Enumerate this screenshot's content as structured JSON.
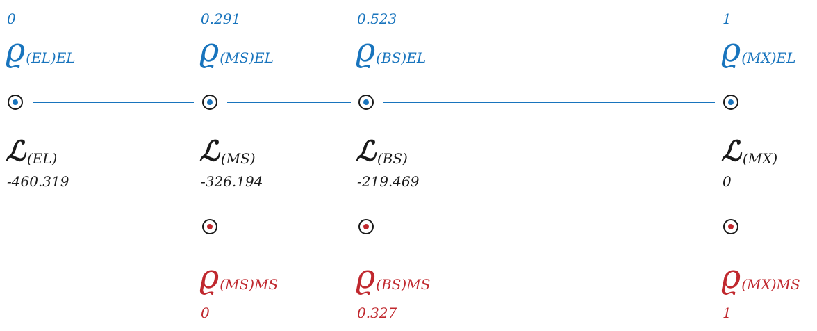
{
  "colors": {
    "el": "#1874bd",
    "ms": "#c0282e",
    "ink": "#1a1a1a"
  },
  "symbols": {
    "rho": "ϱ",
    "lagrangian": "ℒ"
  },
  "states": [
    {
      "id": "EL",
      "rho_el_sub": "(EL)EL",
      "rho_el_value": "0",
      "L_sub": "(EL)",
      "L_value": "-460.319"
    },
    {
      "id": "MS",
      "rho_el_sub": "(MS)EL",
      "rho_el_value": "0.291",
      "L_sub": "(MS)",
      "L_value": "-326.194",
      "rho_ms_sub": "(MS)MS",
      "rho_ms_value": "0"
    },
    {
      "id": "BS",
      "rho_el_sub": "(BS)EL",
      "rho_el_value": "0.523",
      "L_sub": "(BS)",
      "L_value": "-219.469",
      "rho_ms_sub": "(BS)MS",
      "rho_ms_value": "0.327"
    },
    {
      "id": "MX",
      "rho_el_sub": "(MX)EL",
      "rho_el_value": "1",
      "L_sub": "(MX)",
      "L_value": "0",
      "rho_ms_sub": "(MX)MS",
      "rho_ms_value": "1"
    }
  ]
}
